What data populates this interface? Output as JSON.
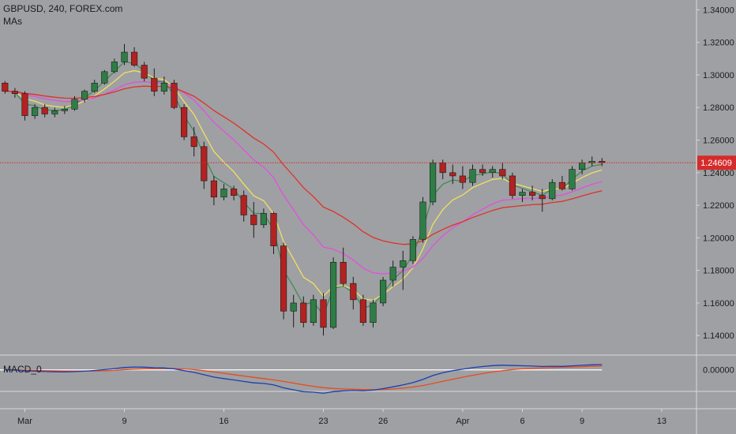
{
  "header": {
    "symbol_line": "GBPUSD, 240, FOREX.com",
    "indicator_label": "MAs",
    "macd_label": "MACD_0"
  },
  "chart_data": {
    "type": "candlestick",
    "price_axis": {
      "ticks": [
        "1.34000",
        "1.32000",
        "1.30000",
        "1.28000",
        "1.26000",
        "1.24000",
        "1.22000",
        "1.20000",
        "1.18000",
        "1.16000",
        "1.14000"
      ],
      "ylim": [
        1.128,
        1.346
      ]
    },
    "current_price": {
      "label": "1.24609",
      "value": 1.24609,
      "color": "#d62b2b"
    },
    "macd_axis": {
      "ticks": [
        "0.00000"
      ],
      "ylim": [
        -0.032,
        0.022
      ]
    },
    "time_axis": {
      "labels": [
        {
          "text": "Mar",
          "index": 2
        },
        {
          "text": "9",
          "index": 12
        },
        {
          "text": "16",
          "index": 22
        },
        {
          "text": "23",
          "index": 32
        },
        {
          "text": "26",
          "index": 38
        },
        {
          "text": "Apr",
          "index": 46
        },
        {
          "text": "6",
          "index": 52
        },
        {
          "text": "9",
          "index": 58
        },
        {
          "text": "13",
          "index": 66
        }
      ],
      "count": 70
    },
    "candles": [
      [
        1.295,
        1.2962,
        1.2885,
        1.29
      ],
      [
        1.29,
        1.292,
        1.286,
        1.2885
      ],
      [
        1.2885,
        1.29,
        1.272,
        1.275
      ],
      [
        1.275,
        1.282,
        1.273,
        1.28
      ],
      [
        1.28,
        1.282,
        1.274,
        1.276
      ],
      [
        1.276,
        1.28,
        1.274,
        1.278
      ],
      [
        1.278,
        1.281,
        1.276,
        1.279
      ],
      [
        1.279,
        1.287,
        1.278,
        1.285
      ],
      [
        1.285,
        1.291,
        1.283,
        1.29
      ],
      [
        1.29,
        1.297,
        1.289,
        1.295
      ],
      [
        1.295,
        1.303,
        1.294,
        1.302
      ],
      [
        1.302,
        1.31,
        1.301,
        1.308
      ],
      [
        1.308,
        1.319,
        1.306,
        1.314
      ],
      [
        1.314,
        1.317,
        1.305,
        1.306
      ],
      [
        1.306,
        1.308,
        1.296,
        1.298
      ],
      [
        1.298,
        1.304,
        1.287,
        1.29
      ],
      [
        1.29,
        1.299,
        1.288,
        1.295
      ],
      [
        1.295,
        1.297,
        1.279,
        1.28
      ],
      [
        1.28,
        1.282,
        1.26,
        1.262
      ],
      [
        1.262,
        1.268,
        1.25,
        1.256
      ],
      [
        1.256,
        1.259,
        1.23,
        1.235
      ],
      [
        1.235,
        1.238,
        1.22,
        1.225
      ],
      [
        1.225,
        1.233,
        1.223,
        1.23
      ],
      [
        1.23,
        1.232,
        1.223,
        1.226
      ],
      [
        1.226,
        1.229,
        1.21,
        1.214
      ],
      [
        1.214,
        1.222,
        1.2,
        1.208
      ],
      [
        1.208,
        1.218,
        1.206,
        1.215
      ],
      [
        1.215,
        1.216,
        1.19,
        1.195
      ],
      [
        1.195,
        1.197,
        1.15,
        1.155
      ],
      [
        1.155,
        1.165,
        1.145,
        1.16
      ],
      [
        1.16,
        1.164,
        1.145,
        1.148
      ],
      [
        1.148,
        1.165,
        1.146,
        1.162
      ],
      [
        1.162,
        1.166,
        1.14,
        1.145
      ],
      [
        1.145,
        1.188,
        1.144,
        1.185
      ],
      [
        1.185,
        1.194,
        1.17,
        1.172
      ],
      [
        1.172,
        1.176,
        1.156,
        1.162
      ],
      [
        1.162,
        1.165,
        1.146,
        1.148
      ],
      [
        1.148,
        1.162,
        1.145,
        1.16
      ],
      [
        1.16,
        1.176,
        1.158,
        1.174
      ],
      [
        1.174,
        1.186,
        1.17,
        1.182
      ],
      [
        1.182,
        1.192,
        1.168,
        1.186
      ],
      [
        1.186,
        1.201,
        1.184,
        1.199
      ],
      [
        1.199,
        1.225,
        1.197,
        1.222
      ],
      [
        1.222,
        1.248,
        1.22,
        1.246
      ],
      [
        1.246,
        1.248,
        1.236,
        1.24
      ],
      [
        1.24,
        1.245,
        1.233,
        1.238
      ],
      [
        1.238,
        1.244,
        1.23,
        1.234
      ],
      [
        1.234,
        1.245,
        1.232,
        1.242
      ],
      [
        1.242,
        1.245,
        1.238,
        1.24
      ],
      [
        1.24,
        1.244,
        1.237,
        1.242
      ],
      [
        1.242,
        1.246,
        1.236,
        1.238
      ],
      [
        1.238,
        1.24,
        1.224,
        1.226
      ],
      [
        1.226,
        1.23,
        1.222,
        1.228
      ],
      [
        1.228,
        1.232,
        1.223,
        1.226
      ],
      [
        1.226,
        1.23,
        1.216,
        1.224
      ],
      [
        1.224,
        1.236,
        1.223,
        1.234
      ],
      [
        1.234,
        1.238,
        1.229,
        1.23
      ],
      [
        1.23,
        1.244,
        1.229,
        1.242
      ],
      [
        1.242,
        1.248,
        1.239,
        1.246
      ],
      [
        1.246,
        1.25,
        1.244,
        1.247
      ],
      [
        1.247,
        1.249,
        1.244,
        1.2461
      ]
    ],
    "ma_colors": [
      "#3d8c55",
      "#f0e060",
      "#e050e0",
      "#e0302a"
    ],
    "macd_colors": {
      "macd": "#1a3fb0",
      "signal": "#e84b1d",
      "zero": "#ffffff"
    },
    "candle_colors": {
      "up": "#2e7d46",
      "down": "#b32121",
      "wick": "#1c1c1c"
    }
  }
}
